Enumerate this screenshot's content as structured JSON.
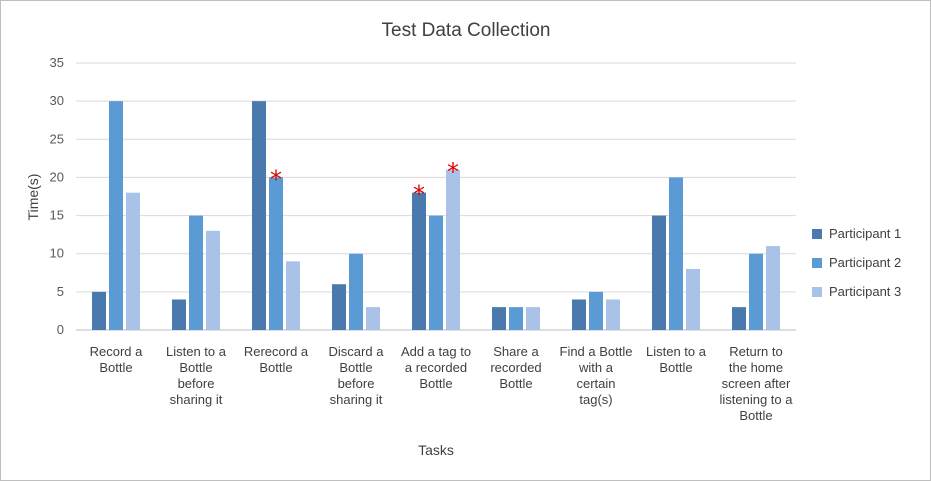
{
  "chart_data": {
    "type": "bar",
    "title": "Test Data Collection",
    "xlabel": "Tasks",
    "ylabel": "Time(s)",
    "ylim": [
      0,
      35
    ],
    "yticks": [
      0,
      5,
      10,
      15,
      20,
      25,
      30,
      35
    ],
    "grid": true,
    "legend_position": "right",
    "categories": [
      [
        "Record a",
        "Bottle"
      ],
      [
        "Listen to a",
        "Bottle",
        "before",
        "sharing it"
      ],
      [
        "Rerecord a",
        "Bottle"
      ],
      [
        "Discard a",
        "Bottle",
        "before",
        "sharing it"
      ],
      [
        "Add a tag to",
        "a recorded",
        "Bottle"
      ],
      [
        "Share a",
        "recorded",
        "Bottle"
      ],
      [
        "Find a Bottle",
        "with a",
        "certain",
        "tag(s)"
      ],
      [
        "Listen to a",
        "Bottle"
      ],
      [
        "Return to",
        "the home",
        "screen after",
        "listening to a",
        "Bottle"
      ]
    ],
    "series": [
      {
        "name": "Participant 1",
        "color": "#4a7aad",
        "values": [
          5,
          4,
          30,
          6,
          18,
          3,
          4,
          15,
          3
        ]
      },
      {
        "name": "Participant 2",
        "color": "#5b9bd5",
        "values": [
          30,
          15,
          20,
          10,
          15,
          3,
          5,
          20,
          10
        ]
      },
      {
        "name": "Participant 3",
        "color": "#a9c3e8",
        "values": [
          18,
          13,
          9,
          3,
          21,
          3,
          4,
          8,
          11
        ]
      }
    ],
    "annotations": [
      {
        "text": "*",
        "category": 2,
        "series": 1,
        "color": "#e00000"
      },
      {
        "text": "*",
        "category": 4,
        "series": 0,
        "color": "#e00000"
      },
      {
        "text": "*",
        "category": 4,
        "series": 2,
        "color": "#e00000"
      }
    ]
  }
}
